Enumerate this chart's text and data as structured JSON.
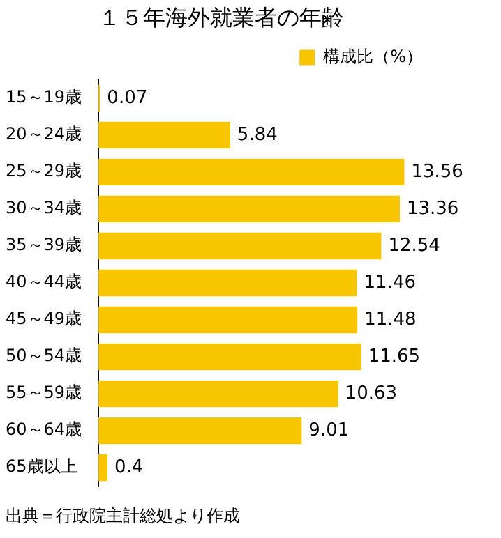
{
  "chart_data": {
    "type": "bar",
    "orientation": "horizontal",
    "title": "１５年海外就業者の年齢",
    "categories": [
      "15～19歳",
      "20～24歳",
      "25～29歳",
      "30～34歳",
      "35～39歳",
      "40～44歳",
      "45～49歳",
      "50～54歳",
      "55～59歳",
      "60～64歳",
      "65歳以上"
    ],
    "series": [
      {
        "name": "構成比（%）",
        "color": "#f7c600",
        "values": [
          0.07,
          5.84,
          13.56,
          13.36,
          12.54,
          11.46,
          11.48,
          11.65,
          10.63,
          9.01,
          0.4
        ]
      }
    ],
    "tick_labels": "y",
    "legend": "top right",
    "data_labels": true,
    "annotations": [
      "出典＝行政院主計総処より作成"
    ]
  }
}
